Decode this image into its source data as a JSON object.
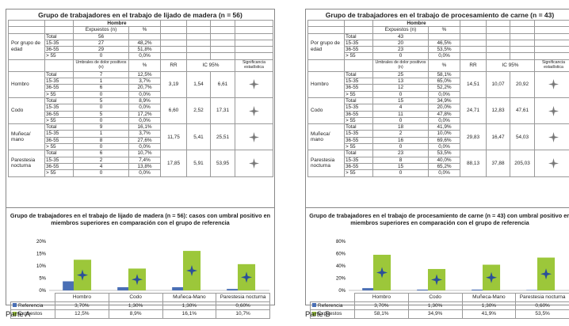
{
  "colors": {
    "referencia": "#4a6fb5",
    "expuestos": "#9cc73a",
    "star": "#2a4f9a"
  },
  "panels": [
    {
      "title": "Grupo de trabajadores en el trabajo de lijado de madera (n = 56)",
      "hombre": "Hombre",
      "exp_label": "Expuestos (n)",
      "pct": "%",
      "age_group_label": "Por grupo de edad",
      "age_rows": [
        [
          "Total",
          "56",
          ""
        ],
        [
          "15-35",
          "27",
          "48,2%"
        ],
        [
          "36-55",
          "29",
          "51,8%"
        ],
        [
          "> 55",
          "0",
          "0,0%"
        ]
      ],
      "umbral_label": "Umbrales de dolor positivos (n)",
      "rr_label": "RR",
      "ic_label": "IC 95%",
      "sig_label": "Significancia estadística",
      "regions": [
        {
          "name": "Hombro",
          "rr": "3,19",
          "ic_low": "1,54",
          "ic_high": "6,61",
          "rows": [
            [
              "Total",
              "7",
              "12,5%"
            ],
            [
              "15-35",
              "1",
              "3,7%"
            ],
            [
              "36-55",
              "6",
              "20,7%"
            ],
            [
              "> 55",
              "0",
              "0,0%"
            ]
          ]
        },
        {
          "name": "Codo",
          "rr": "6,60",
          "ic_low": "2,52",
          "ic_high": "17,31",
          "rows": [
            [
              "Total",
              "5",
              "8,9%"
            ],
            [
              "15-35",
              "0",
              "0,0%"
            ],
            [
              "36-55",
              "5",
              "17,2%"
            ],
            [
              "> 55",
              "0",
              "0,0%"
            ]
          ]
        },
        {
          "name": "Muñeca/ mano",
          "rr": "11,75",
          "ic_low": "5,41",
          "ic_high": "25,51",
          "rows": [
            [
              "Total",
              "9",
              "16,1%"
            ],
            [
              "15-35",
              "1",
              "3,7%"
            ],
            [
              "36-55",
              "8",
              "27,6%"
            ],
            [
              "> 55",
              "0",
              "0,0%"
            ]
          ]
        },
        {
          "name": "Parestesia nocturna",
          "rr": "17,85",
          "ic_low": "5,91",
          "ic_high": "53,95",
          "rows": [
            [
              "Total",
              "6",
              "10,7%"
            ],
            [
              "15-35",
              "2",
              "7,4%"
            ],
            [
              "36-55",
              "4",
              "13,8%"
            ],
            [
              "> 55",
              "0",
              "0,0%"
            ]
          ]
        }
      ],
      "chart_title": "Grupo de trabajadores en el trabajo de lijado de madera (n = 56): casos con umbral positivo en miembros superiores en comparación con el grupo de referencia",
      "legend": {
        "categories": [
          "Hombro",
          "Codo",
          "Muñeca-Mano",
          "Parestesia nocturna"
        ],
        "referencia_label": "Referencia",
        "expuestos_label": "Expuestos",
        "referencia_values": [
          "3,70%",
          "1,30%",
          "1,30%",
          "0,60%"
        ],
        "expuestos_values": [
          "12,5%",
          "8,9%",
          "16,1%",
          "10,7%"
        ]
      },
      "chart_data": {
        "type": "bar",
        "categories": [
          "Hombro",
          "Codo",
          "Muñeca-Mano",
          "Parestesia nocturna"
        ],
        "series": [
          {
            "name": "Referencia",
            "values": [
              3.7,
              1.3,
              1.3,
              0.6
            ]
          },
          {
            "name": "Expuestos",
            "values": [
              12.5,
              8.9,
              16.1,
              10.7
            ]
          }
        ],
        "yticks": [
          "0%",
          "5%",
          "10%",
          "15%",
          "20%"
        ],
        "ylim": [
          0,
          20
        ]
      }
    },
    {
      "title": "Grupo de trabajadores en el trabajo de procesamiento de carne (n = 43)",
      "hombre": "Hombre",
      "exp_label": "Expuestos (n)",
      "pct": "%",
      "age_group_label": "Por grupo de edad",
      "age_rows": [
        [
          "Total",
          "43",
          ""
        ],
        [
          "15-35",
          "20",
          "46,5%"
        ],
        [
          "36-55",
          "23",
          "53,5%"
        ],
        [
          "> 55",
          "0",
          "0,0%"
        ]
      ],
      "umbral_label": "Umbrales de dolor positivos (n)",
      "rr_label": "RR",
      "ic_label": "IC 95%",
      "sig_label": "Significancia estadística",
      "regions": [
        {
          "name": "Hombro",
          "rr": "14,51",
          "ic_low": "10,07",
          "ic_high": "20,92",
          "rows": [
            [
              "Total",
              "25",
              "58,1%"
            ],
            [
              "15-35",
              "13",
              "65,0%"
            ],
            [
              "36-55",
              "12",
              "52,2%"
            ],
            [
              "> 55",
              "0",
              "0,0%"
            ]
          ]
        },
        {
          "name": "Codo",
          "rr": "24,71",
          "ic_low": "12,83",
          "ic_high": "47,61",
          "rows": [
            [
              "Total",
              "15",
              "34,9%"
            ],
            [
              "15-35",
              "4",
              "20,0%"
            ],
            [
              "36-55",
              "11",
              "47,8%"
            ],
            [
              "> 55",
              "0",
              "0,0%"
            ]
          ]
        },
        {
          "name": "Muñeca/ mano",
          "rr": "29,83",
          "ic_low": "16,47",
          "ic_high": "54,03",
          "rows": [
            [
              "Total",
              "18",
              "41,9%"
            ],
            [
              "15-35",
              "2",
              "10,0%"
            ],
            [
              "36-55",
              "16",
              "69,6%"
            ],
            [
              "> 55",
              "0",
              "0,0%"
            ]
          ]
        },
        {
          "name": "Parestesia nocturna",
          "rr": "88,13",
          "ic_low": "37,88",
          "ic_high": "205,03",
          "rows": [
            [
              "Total",
              "23",
              "53,5%"
            ],
            [
              "15-35",
              "8",
              "40,0%"
            ],
            [
              "36-55",
              "15",
              "65,2%"
            ],
            [
              "> 55",
              "0",
              "0,0%"
            ]
          ]
        }
      ],
      "chart_title": "Grupo de trabajadores en el trabajo de procesamiento de carne (n = 43) con umbral positivo en miembros superiores en comparación con el grupo de referencia",
      "legend": {
        "categories": [
          "Hombro",
          "Codo",
          "Muñeca-Mano",
          "Parestesia nocturna"
        ],
        "referencia_label": "Referencia",
        "expuestos_label": "Expuestos",
        "referencia_values": [
          "3,70%",
          "1,30%",
          "1,30%",
          "0,60%"
        ],
        "expuestos_values": [
          "58,1%",
          "34,9%",
          "41,9%",
          "53,5%"
        ]
      },
      "chart_data": {
        "type": "bar",
        "categories": [
          "Hombro",
          "Codo",
          "Muñeca-Mano",
          "Parestesia nocturna"
        ],
        "series": [
          {
            "name": "Referencia",
            "values": [
              3.7,
              1.3,
              1.3,
              0.6
            ]
          },
          {
            "name": "Expuestos",
            "values": [
              58.1,
              34.9,
              41.9,
              53.5
            ]
          }
        ],
        "yticks": [
          "0%",
          "20%",
          "40%",
          "60%",
          "80%"
        ],
        "ylim": [
          0,
          80
        ]
      }
    }
  ],
  "part_labels": [
    "Parte A",
    "Parte B"
  ]
}
